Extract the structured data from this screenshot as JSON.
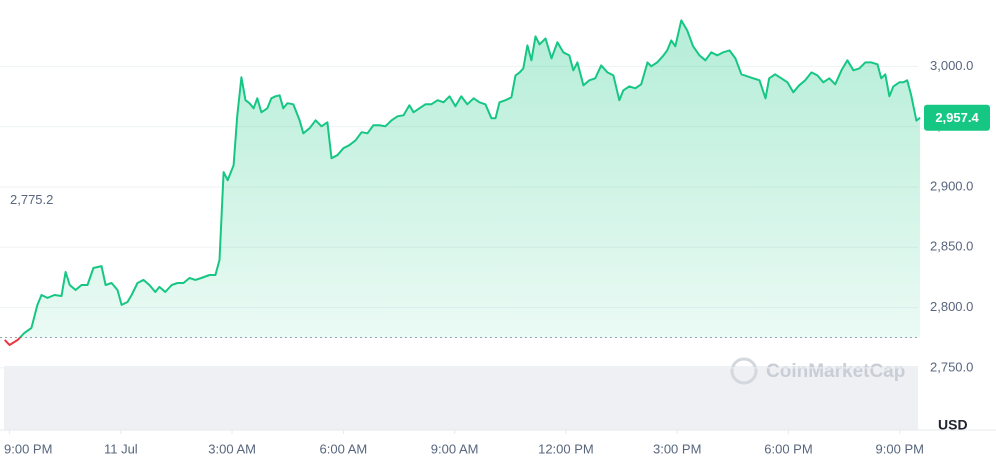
{
  "chart_data": {
    "type": "line",
    "brand": "CoinMarketCap",
    "currency": "USD",
    "reference": {
      "value": 2775.2,
      "label": "2,775.2"
    },
    "current": {
      "value": 2957.4,
      "label": "2,957.4"
    },
    "up_color": "#16c784",
    "down_color": "#ea3943",
    "grid": true,
    "xlim": [
      -0.15,
      24.6
    ],
    "xticks": [
      {
        "value": 0,
        "label": "9:00 PM"
      },
      {
        "value": 3,
        "label": "11 Jul"
      },
      {
        "value": 6,
        "label": "3:00 AM"
      },
      {
        "value": 9,
        "label": "6:00 AM"
      },
      {
        "value": 12,
        "label": "9:00 AM"
      },
      {
        "value": 15,
        "label": "12:00 PM"
      },
      {
        "value": 18,
        "label": "3:00 PM"
      },
      {
        "value": 21,
        "label": "6:00 PM"
      },
      {
        "value": 24,
        "label": "9:00 PM"
      }
    ],
    "ylim": [
      2730,
      3055
    ],
    "yticks": [
      {
        "value": 2750,
        "label": "2,750.0"
      },
      {
        "value": 2800,
        "label": "2,800.0"
      },
      {
        "value": 2850,
        "label": "2,850.0"
      },
      {
        "value": 2900,
        "label": "2,900.0"
      },
      {
        "value": 2950,
        "label": "2,950.0"
      },
      {
        "value": 3000,
        "label": "3,000.0"
      }
    ],
    "x": [
      -0.13,
      0,
      0.22,
      0.4,
      0.59,
      0.75,
      0.86,
      1.02,
      1.21,
      1.4,
      1.51,
      1.62,
      1.78,
      1.94,
      2.1,
      2.26,
      2.48,
      2.59,
      2.75,
      2.91,
      3.02,
      3.18,
      3.29,
      3.45,
      3.61,
      3.77,
      3.93,
      4.04,
      4.2,
      4.37,
      4.53,
      4.69,
      4.85,
      5.01,
      5.17,
      5.39,
      5.55,
      5.66,
      5.77,
      5.88,
      6.04,
      6.14,
      6.25,
      6.36,
      6.47,
      6.58,
      6.68,
      6.79,
      6.95,
      7.06,
      7.17,
      7.28,
      7.38,
      7.49,
      7.65,
      7.82,
      7.92,
      8.09,
      8.25,
      8.41,
      8.57,
      8.68,
      8.84,
      9,
      9.16,
      9.33,
      9.49,
      9.65,
      9.81,
      9.97,
      10.13,
      10.3,
      10.46,
      10.62,
      10.78,
      10.89,
      11.05,
      11.21,
      11.37,
      11.54,
      11.7,
      11.86,
      12.02,
      12.18,
      12.34,
      12.51,
      12.67,
      12.83,
      12.99,
      13.1,
      13.21,
      13.37,
      13.53,
      13.64,
      13.75,
      13.85,
      13.96,
      14.07,
      14.18,
      14.29,
      14.45,
      14.61,
      14.77,
      14.93,
      15.09,
      15.2,
      15.31,
      15.47,
      15.63,
      15.79,
      15.95,
      16.12,
      16.28,
      16.44,
      16.55,
      16.71,
      16.87,
      17.03,
      17.2,
      17.3,
      17.46,
      17.63,
      17.73,
      17.84,
      17.95,
      18.11,
      18.27,
      18.43,
      18.6,
      18.76,
      18.92,
      19.08,
      19.24,
      19.41,
      19.57,
      19.73,
      19.89,
      20.05,
      20.22,
      20.38,
      20.48,
      20.64,
      20.81,
      20.97,
      21.13,
      21.29,
      21.45,
      21.62,
      21.78,
      21.94,
      22.1,
      22.26,
      22.43,
      22.59,
      22.75,
      22.91,
      23.07,
      23.23,
      23.4,
      23.5,
      23.61,
      23.72,
      23.83,
      23.99,
      24.1,
      24.2,
      24.31,
      24.45,
      24.55
    ],
    "values": [
      2773.2,
      2769,
      2773.2,
      2779,
      2783.1,
      2802.2,
      2810.4,
      2808,
      2810.4,
      2809.6,
      2829.5,
      2818.7,
      2814.6,
      2818.7,
      2818.7,
      2832.8,
      2834.4,
      2818.7,
      2820.4,
      2814.6,
      2802.2,
      2804.6,
      2810.4,
      2820.4,
      2822.9,
      2818.7,
      2812.9,
      2817.1,
      2812.9,
      2818.7,
      2820.4,
      2820.4,
      2824.5,
      2822.9,
      2824.5,
      2827,
      2827,
      2839.4,
      2912.3,
      2905.6,
      2918,
      2959.4,
      2990.9,
      2971.9,
      2969.4,
      2965.2,
      2973.5,
      2961.9,
      2965.2,
      2973.5,
      2975.2,
      2976,
      2965.2,
      2969.4,
      2968.5,
      2955.3,
      2944.5,
      2948.7,
      2955.3,
      2950.3,
      2953.6,
      2923.8,
      2926.3,
      2932.1,
      2934.6,
      2938.7,
      2945.4,
      2944.5,
      2951.2,
      2951.2,
      2950.3,
      2955.3,
      2958.6,
      2959.4,
      2967.7,
      2961.9,
      2965.2,
      2968.5,
      2968.5,
      2971.9,
      2970.2,
      2975.2,
      2966.9,
      2975.2,
      2968.5,
      2973.5,
      2970.2,
      2968.5,
      2957,
      2957,
      2970.2,
      2971.9,
      2974.3,
      2992.5,
      2995,
      2998.3,
      3017.4,
      3005,
      3024.8,
      3018.2,
      3023.2,
      3006.6,
      3019.9,
      3011.6,
      3009.1,
      2996.7,
      3003.3,
      2984.3,
      2988.4,
      2990.1,
      3000.8,
      2995,
      2992.5,
      2971.9,
      2980.1,
      2983.4,
      2981.8,
      2985.1,
      3003.3,
      3000,
      3003.3,
      3009.1,
      3013.2,
      3021.5,
      3016.6,
      3038.1,
      3029.8,
      3016.6,
      3009.1,
      3005,
      3011.6,
      3009.1,
      3011.6,
      3013.2,
      3006.6,
      2993.4,
      2991.7,
      2990.1,
      2988.4,
      2973.5,
      2990.1,
      2993.4,
      2990.1,
      2986.8,
      2978.5,
      2984.3,
      2988.4,
      2995,
      2992.5,
      2986.8,
      2990.1,
      2985.1,
      2996.7,
      3005,
      2996.7,
      2998.3,
      3003.3,
      3003.3,
      3001.7,
      2990.1,
      2993.4,
      2975.2,
      2983.4,
      2986.8,
      2986.8,
      2988.4,
      2976,
      2955,
      2957.4
    ]
  }
}
